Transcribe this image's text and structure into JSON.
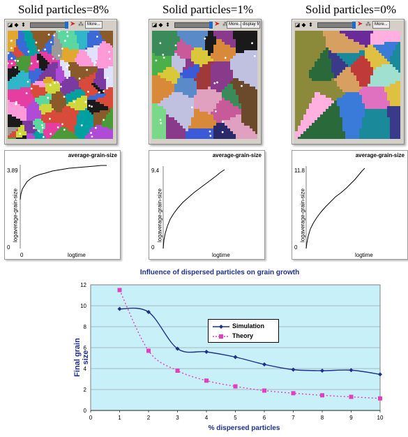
{
  "panels": [
    {
      "title": "Solid particles=8%",
      "toolbar": {
        "more_label": "More..."
      },
      "plot": {
        "title": "average-grain-size",
        "ymax_label": "3.89",
        "ymin_label": "0",
        "xmin_label": "0",
        "xlabel": "logtime",
        "ylabel": "logaverage-grain-size"
      }
    },
    {
      "title": "Solid particles=1%",
      "toolbar": {
        "more_label": "More...",
        "display_label": "display fro..."
      },
      "plot": {
        "title": "average-grain-size",
        "ymax_label": "9.4",
        "ymin_label": "0",
        "xmin_label": "",
        "xlabel": "logtime",
        "ylabel": "logaverage-grain-size"
      }
    },
    {
      "title": "Solid particles=0%",
      "toolbar": {
        "more_label": "More..."
      },
      "plot": {
        "title": "average-grain-size",
        "ymax_label": "11.8",
        "ymin_label": "0",
        "xmin_label": "",
        "xlabel": "logtime",
        "ylabel": "logaverage-grain-size"
      }
    }
  ],
  "chart_data": {
    "type": "line",
    "title": "Influence of dispersed particles on grain growth",
    "xlabel": "% dispersed particles",
    "ylabel": "Final grain size",
    "x": [
      1,
      2,
      3,
      4,
      5,
      6,
      7,
      8,
      9,
      10
    ],
    "xlim": [
      0,
      10
    ],
    "ylim": [
      0,
      12
    ],
    "x_ticks": [
      "0",
      "1",
      "2",
      "3",
      "4",
      "5",
      "6",
      "7",
      "8",
      "9",
      "10"
    ],
    "y_ticks": [
      "0",
      "2",
      "4",
      "6",
      "8",
      "10",
      "12"
    ],
    "grid": true,
    "legend_position": "upper-center",
    "series": [
      {
        "name": "Simulation",
        "color": "#1f2f8f",
        "style": "solid",
        "values": [
          9.7,
          9.4,
          5.9,
          5.6,
          5.1,
          4.4,
          3.9,
          3.8,
          3.85,
          3.45
        ]
      },
      {
        "name": "Theory",
        "color": "#e040c0",
        "style": "dotted",
        "values": [
          11.5,
          5.7,
          3.8,
          2.85,
          2.3,
          1.9,
          1.65,
          1.45,
          1.3,
          1.15
        ]
      }
    ],
    "background_color": "#c8f0f8"
  },
  "colors": {
    "window_gray": "#d4d0c8",
    "chart_title_blue": "#1f2f8f",
    "chart_bg": "#c8f0f8"
  }
}
